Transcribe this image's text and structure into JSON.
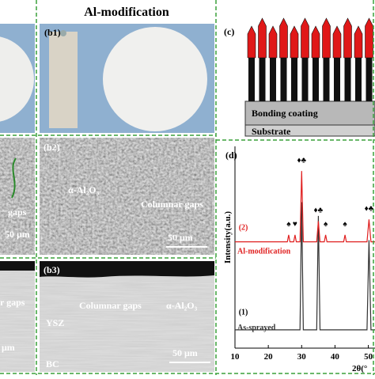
{
  "heading": "Al-modification",
  "left": {
    "texts": [
      "gaps",
      "50 μm",
      "r gaps",
      "μm"
    ]
  },
  "b1": {
    "label": "(b1)"
  },
  "b2": {
    "label": "(b2)",
    "texts": [
      "α-Al₂O₃",
      "Columnar gaps",
      "50 μm"
    ]
  },
  "b3": {
    "label": "(b3)",
    "texts": [
      "Columnar gaps",
      "α-Al₂O₃",
      "YSZ",
      "BC",
      "50 μm"
    ]
  },
  "c": {
    "label": "(c)",
    "layers": [
      "Bonding coating",
      "Substrate"
    ]
  },
  "d": {
    "label": "(d)",
    "chart_data": {
      "type": "line",
      "y_label": "Intensity(a.u.)",
      "x_label": "2θ(°",
      "xlim": [
        10,
        52
      ],
      "xticks": [
        10,
        20,
        30,
        40,
        50
      ],
      "ylim": [
        0,
        110
      ],
      "series": [
        {
          "name": "As-sprayed",
          "color": "#333333",
          "x": [
            10,
            29.5,
            30,
            30.5,
            34.5,
            35,
            35.5,
            49.6,
            50.2,
            50.8,
            52
          ],
          "values": [
            6,
            6,
            80,
            6,
            6,
            72,
            6,
            6,
            58,
            6,
            6
          ]
        },
        {
          "name": "Al-modification",
          "color": "#e02020",
          "x": [
            10,
            25.7,
            26.1,
            26.5,
            27.6,
            28,
            28.4,
            29.5,
            30,
            30.5,
            34.5,
            35,
            35.5,
            36.8,
            37.2,
            37.6,
            42.6,
            43,
            43.4,
            49.6,
            50.2,
            50.8,
            52
          ],
          "values": [
            57,
            57,
            61,
            57,
            57,
            61,
            57,
            57,
            98,
            57,
            57,
            69,
            57,
            57,
            61,
            57,
            57,
            61,
            57,
            57,
            70,
            57,
            57
          ]
        }
      ],
      "annotations": [
        "♦♣",
        "♠",
        "♥",
        "♦♣",
        "♠",
        "♠",
        "♦♣",
        "(2)",
        "(1)"
      ]
    }
  }
}
